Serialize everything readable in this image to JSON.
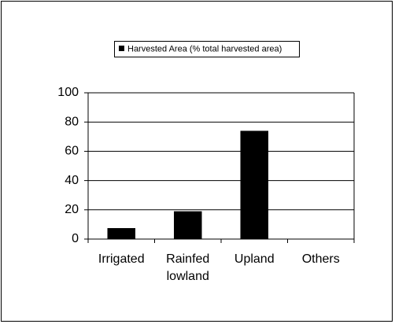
{
  "chart_data": {
    "type": "bar",
    "categories": [
      "Irrigated",
      "Rainfed lowland",
      "Upland",
      "Others"
    ],
    "series": [
      {
        "name": "Harvested Area (% total harvested area)",
        "color": "#000000",
        "values": [
          7.5,
          19,
          74,
          0
        ]
      }
    ],
    "ylim": [
      0,
      100
    ],
    "yticks": [
      0,
      20,
      40,
      60,
      80,
      100
    ],
    "grid": true,
    "legend": "top"
  }
}
